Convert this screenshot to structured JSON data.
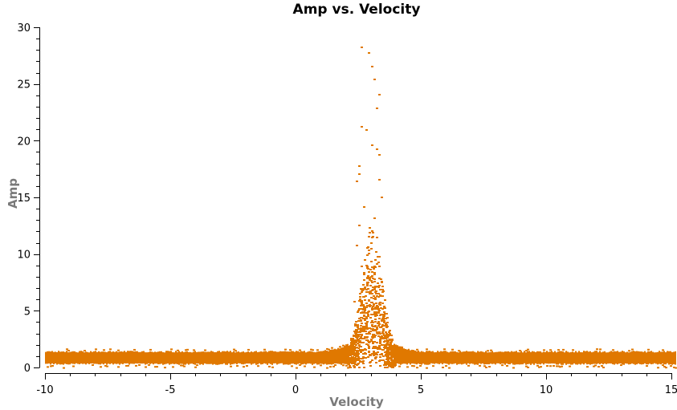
{
  "chart_data": {
    "type": "scatter",
    "title": "Amp vs. Velocity",
    "xlabel": "Velocity",
    "ylabel": "Amp",
    "xlim": [
      -10,
      15
    ],
    "ylim": [
      0,
      30
    ],
    "x_ticks": [
      -10,
      -5,
      0,
      5,
      10,
      15
    ],
    "x_tick_labels": [
      "-10",
      "-5",
      "0",
      "5",
      "10",
      "15"
    ],
    "y_ticks": [
      0,
      5,
      10,
      15,
      20,
      25,
      30
    ],
    "y_tick_labels": [
      "0",
      "5",
      "10",
      "15",
      "20",
      "25",
      "30"
    ],
    "x_minor_step": 1,
    "y_minor_step": 1,
    "grid": false,
    "legend": null,
    "marker_color": "#E07800",
    "series": [
      {
        "name": "baseline",
        "description": "dense band of points across full velocity range",
        "x_range": [
          -10,
          15
        ],
        "amp_range": [
          0.3,
          1.4
        ]
      },
      {
        "name": "line-emission",
        "description": "spectral line peak",
        "center_velocity": 3.0,
        "width_velocity": 1.4,
        "peak_amp": 28.3,
        "x": [
          2.6,
          2.9,
          3.0,
          3.1,
          3.3,
          3.2,
          2.6,
          2.8,
          3.0,
          3.2,
          3.3,
          2.5,
          2.5,
          2.4,
          3.3,
          3.4,
          2.7,
          3.1,
          2.5,
          3.0,
          3.2,
          2.4,
          2.9,
          3.3,
          2.6,
          3.1,
          3.4,
          2.8,
          2.3,
          3.5
        ],
        "y": [
          28.3,
          27.8,
          26.6,
          25.5,
          24.1,
          22.9,
          21.3,
          21.0,
          19.7,
          19.3,
          18.8,
          17.8,
          17.1,
          16.5,
          16.6,
          15.1,
          14.2,
          13.2,
          12.6,
          12.1,
          11.5,
          10.8,
          10.4,
          9.8,
          9.0,
          8.4,
          7.6,
          6.9,
          5.9,
          5.3
        ]
      }
    ]
  }
}
